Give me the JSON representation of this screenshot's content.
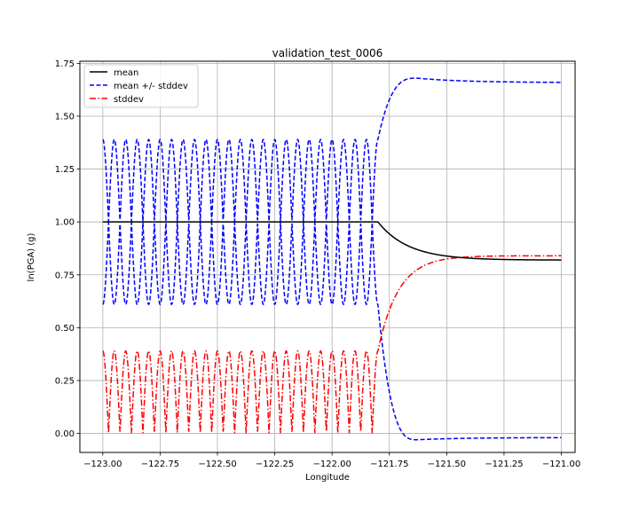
{
  "chart_data": {
    "type": "line",
    "title": "validation_test_0006",
    "xlabel": "Longitude",
    "ylabel": "ln(PGA) (g)",
    "xlim": [
      -123.1,
      -120.94
    ],
    "ylim": [
      -0.09,
      1.76
    ],
    "grid": true,
    "legend_position": "upper-left",
    "x_ticks": [
      -123.0,
      -122.75,
      -122.5,
      -122.25,
      -122.0,
      -121.75,
      -121.5,
      -121.25,
      -121.0
    ],
    "x_tick_labels": [
      "−123.00",
      "−122.75",
      "−122.50",
      "−122.25",
      "−122.00",
      "−121.75",
      "−121.50",
      "−121.25",
      "−121.00"
    ],
    "y_ticks": [
      0.0,
      0.25,
      0.5,
      0.75,
      1.0,
      1.25,
      1.5,
      1.75
    ],
    "y_tick_labels": [
      "0.00",
      "0.25",
      "0.50",
      "0.75",
      "1.00",
      "1.25",
      "1.50",
      "1.75"
    ],
    "series": [
      {
        "name": "mean",
        "color": "#000000",
        "style": "solid",
        "segments": [
          {
            "x_start": -123.0,
            "x_end": -121.8,
            "value": 1.0
          },
          {
            "x_start": -121.8,
            "x_end": -121.0,
            "start_value": 1.0,
            "end_value": 0.82
          }
        ]
      },
      {
        "name": "mean +/- stddev",
        "color": "#0000ff",
        "style": "dashed",
        "oscillation": {
          "x_start": -123.0,
          "x_end": -121.8,
          "center": 1.0,
          "amplitude": 0.39,
          "cycles": 24
        },
        "upper_tail": {
          "x_start": -121.8,
          "x_end": -121.0,
          "start_value": 1.39,
          "peak_x": -121.63,
          "peak_value": 1.68,
          "end_value": 1.66
        },
        "lower_tail": {
          "x_start": -121.8,
          "x_end": -121.0,
          "start_value": 0.61,
          "trough_x": -121.63,
          "trough_value": -0.03,
          "end_value": -0.02
        }
      },
      {
        "name": "stddev",
        "color": "#ff0000",
        "style": "dashdot",
        "oscillation": {
          "x_start": -123.0,
          "x_end": -121.8,
          "min": 0.0,
          "max": 0.39,
          "cycles": 24
        },
        "tail": {
          "x_start": -121.8,
          "x_end": -121.0,
          "start_value": 0.39,
          "end_value": 0.84
        }
      }
    ]
  }
}
